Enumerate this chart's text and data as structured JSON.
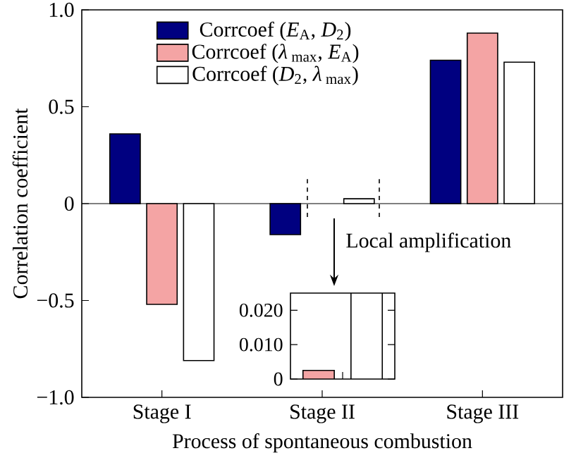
{
  "chart_data": [
    {
      "type": "bar",
      "xlabel": "Process of spontaneous combustion",
      "ylabel": "Correlation coefficient",
      "categories": [
        "Stage I",
        "Stage II",
        "Stage III"
      ],
      "series": [
        {
          "name": "Corrcoef (*E*$_{A}$, *D*$_{2}$)",
          "color": "#000080",
          "values": [
            0.36,
            -0.16,
            0.74
          ]
        },
        {
          "name": "Corrcoef (*λ*$_{ max}$, *E*$_{A}$)",
          "color": "#f4a4a4",
          "values": [
            -0.52,
            null,
            0.88
          ]
        },
        {
          "name": "Corrcoef (*D*$_{2}$, *λ*$_{ max}$)",
          "color": "#ffffff",
          "values": [
            -0.81,
            0.025,
            0.73
          ]
        }
      ],
      "ylim": [
        -1.0,
        1.0
      ],
      "yticks": [
        {
          "value": -1.0,
          "label": "−1.0"
        },
        {
          "value": -0.5,
          "label": "−0.5"
        },
        0,
        0.5,
        {
          "value": 1.0,
          "label": "1.0"
        }
      ],
      "legend": "top",
      "annotations": [
        "Local amplification"
      ]
    },
    {
      "type": "bar",
      "categories": [
        null
      ],
      "series": [
        {
          "color": "#f4a4a4",
          "values": [
            0.0025
          ]
        },
        {
          "color": "#ffffff",
          "values": [
            0.025
          ]
        }
      ],
      "ylim": [
        0,
        0.025
      ],
      "yticks": [
        0,
        {
          "value": 0.01,
          "label": "0.010"
        },
        {
          "value": 0.02,
          "label": "0.020"
        }
      ],
      "tick_labels": "y"
    }
  ]
}
